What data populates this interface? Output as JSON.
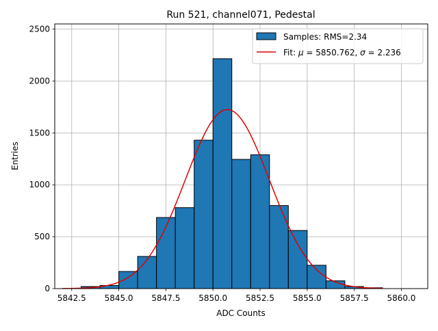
{
  "chart_data": {
    "type": "bar",
    "title": "Run 521, channel071, Pedestal",
    "xlabel": "ADC Counts",
    "ylabel": "Entries",
    "xlim": [
      5841.6,
      5861.4
    ],
    "ylim": [
      0,
      2550
    ],
    "xticks": [
      5842.5,
      5845.0,
      5847.5,
      5850.0,
      5852.5,
      5855.0,
      5857.5,
      5860.0
    ],
    "xtick_labels": [
      "5842.5",
      "5845.0",
      "5847.5",
      "5850.0",
      "5852.5",
      "5855.0",
      "5857.5",
      "5860.0"
    ],
    "yticks": [
      0,
      500,
      1000,
      1500,
      2000,
      2500
    ],
    "ytick_labels": [
      "0",
      "500",
      "1000",
      "1500",
      "2000",
      "2500"
    ],
    "grid": true,
    "legend_position": "top-right",
    "bar_color": "#1f77b4",
    "fit_color": "#e00000",
    "histogram": {
      "name": "Samples: RMS=2.34",
      "bins": [
        {
          "x0": 5843,
          "x1": 5844,
          "count": 20
        },
        {
          "x0": 5844,
          "x1": 5845,
          "count": 30
        },
        {
          "x0": 5845,
          "x1": 5846,
          "count": 165
        },
        {
          "x0": 5846,
          "x1": 5847,
          "count": 310
        },
        {
          "x0": 5847,
          "x1": 5848,
          "count": 685
        },
        {
          "x0": 5848,
          "x1": 5849,
          "count": 780
        },
        {
          "x0": 5849,
          "x1": 5850,
          "count": 1430
        },
        {
          "x0": 5850,
          "x1": 5851,
          "count": 2215
        },
        {
          "x0": 5851,
          "x1": 5852,
          "count": 1245
        },
        {
          "x0": 5852,
          "x1": 5853,
          "count": 1290
        },
        {
          "x0": 5853,
          "x1": 5854,
          "count": 800
        },
        {
          "x0": 5854,
          "x1": 5855,
          "count": 560
        },
        {
          "x0": 5855,
          "x1": 5856,
          "count": 225
        },
        {
          "x0": 5856,
          "x1": 5857,
          "count": 75
        },
        {
          "x0": 5857,
          "x1": 5858,
          "count": 20
        },
        {
          "x0": 5858,
          "x1": 5859,
          "count": 8
        }
      ]
    },
    "fit": {
      "name": "Fit: μ = 5850.762, σ = 2.236",
      "legend_prefix": "Fit: ",
      "mu_symbol": "μ",
      "mu_text": " = 5850.762, ",
      "sigma_symbol": "σ",
      "sigma_text": " = 2.236",
      "mu": 5850.762,
      "sigma": 2.236,
      "amplitude": 1725,
      "x_range": [
        5842.0,
        5859.0
      ]
    }
  }
}
